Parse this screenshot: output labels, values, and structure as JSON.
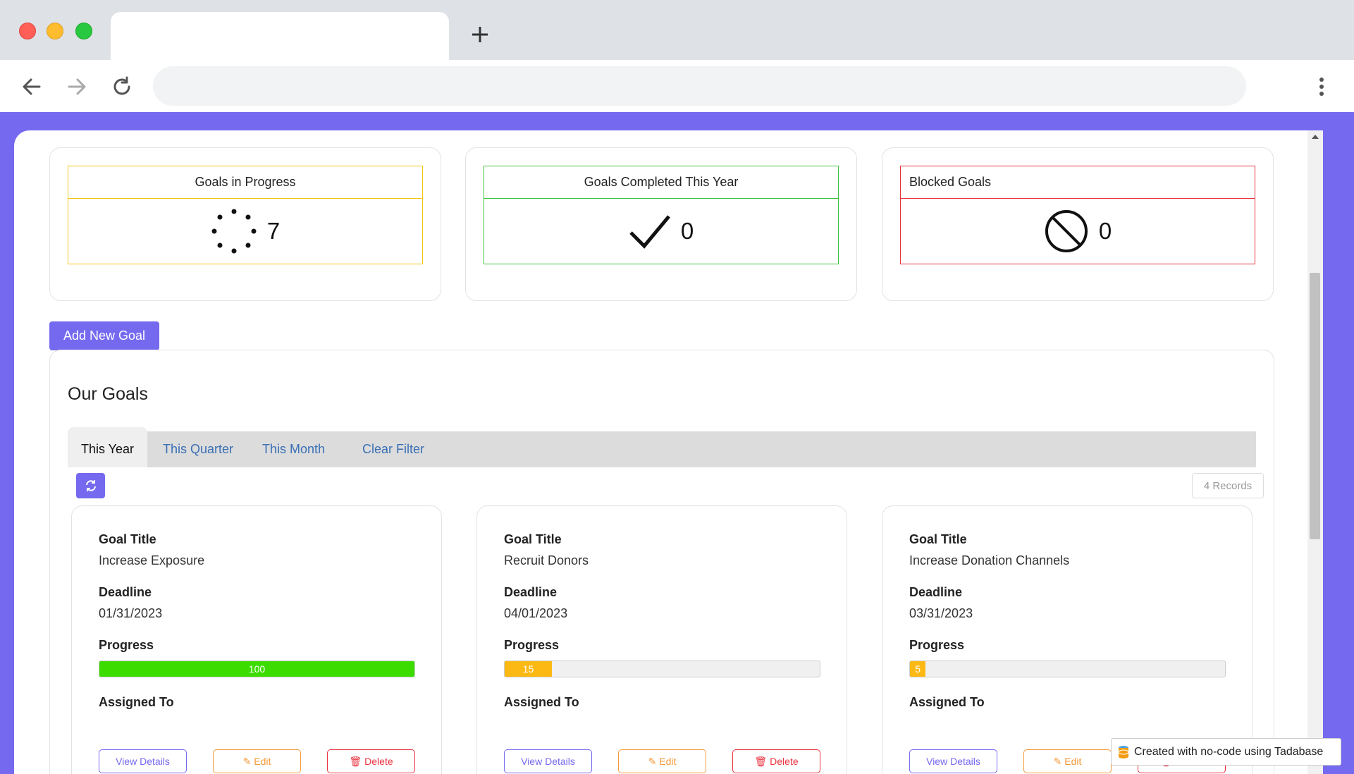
{
  "stats": {
    "in_progress": {
      "label": "Goals in Progress",
      "value": "7"
    },
    "completed": {
      "label": "Goals Completed This Year",
      "value": "0"
    },
    "blocked": {
      "label": "Blocked Goals",
      "value": "0"
    }
  },
  "actions": {
    "add_goal": "Add New Goal"
  },
  "goals_section": {
    "title": "Our Goals",
    "tabs": [
      "This Year",
      "This Quarter",
      "This Month",
      "Clear Filter"
    ],
    "active_tab": "This Year",
    "records": "4 Records"
  },
  "field_labels": {
    "title": "Goal Title",
    "deadline": "Deadline",
    "progress": "Progress",
    "assigned": "Assigned To"
  },
  "buttons": {
    "view": "View Details",
    "edit": "Edit",
    "delete": "Delete"
  },
  "goals": [
    {
      "title": "Increase Exposure",
      "deadline": "01/31/2023",
      "progress": "100",
      "progress_pct": 100,
      "color": "#3ddc00"
    },
    {
      "title": "Recruit Donors",
      "deadline": "04/01/2023",
      "progress": "15",
      "progress_pct": 15,
      "color": "#fdb913"
    },
    {
      "title": "Increase Donation Channels",
      "deadline": "03/31/2023",
      "progress": "5",
      "progress_pct": 5,
      "color": "#fdb913"
    }
  ],
  "footer_badge": "Created with no-code using Tadabase"
}
